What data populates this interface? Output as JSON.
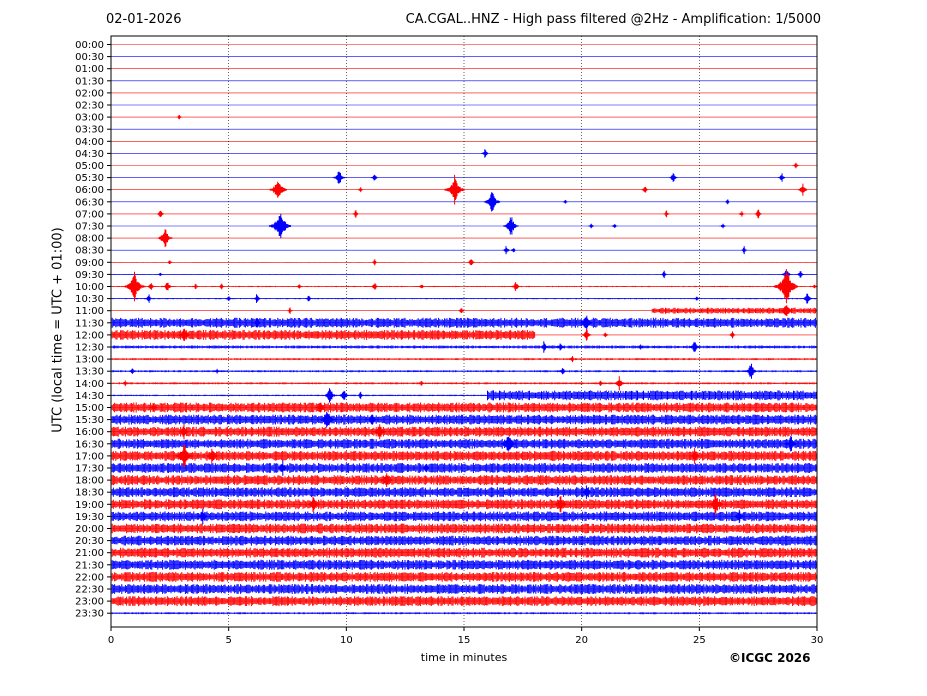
{
  "header": {
    "date": "02-01-2026",
    "title": "CA.CGAL..HNZ - High pass filtered @2Hz - Amplification: 1/5000"
  },
  "footer": {
    "copyright": "©ICGC 2026"
  },
  "colors": {
    "red": "#ff0000",
    "blue": "#0000ff",
    "axis": "#000000"
  },
  "chart_data": {
    "type": "line",
    "title": "CA.CGAL..HNZ - High pass filtered @2Hz - Amplification: 1/5000",
    "xlabel": "time in minutes",
    "ylabel": "UTC (local time = UTC + 01:00)",
    "xlim": [
      0,
      30
    ],
    "xticks": [
      0,
      5,
      10,
      15,
      20,
      25,
      30
    ],
    "grid": "vertical dotted lines at every 5 minutes",
    "row_labels": [
      "00:00",
      "00:30",
      "01:00",
      "01:30",
      "02:00",
      "02:30",
      "03:00",
      "03:30",
      "04:00",
      "04:30",
      "05:00",
      "05:30",
      "06:00",
      "06:30",
      "07:00",
      "07:30",
      "08:00",
      "08:30",
      "09:00",
      "09:30",
      "10:00",
      "10:30",
      "11:00",
      "11:30",
      "12:00",
      "12:30",
      "13:00",
      "13:30",
      "14:00",
      "14:30",
      "15:00",
      "15:30",
      "16:00",
      "16:30",
      "17:00",
      "17:30",
      "18:00",
      "18:30",
      "19:00",
      "19:30",
      "20:00",
      "20:30",
      "21:00",
      "21:30",
      "22:00",
      "22:30",
      "23:00",
      "23:30"
    ],
    "series_colors": [
      "red",
      "blue"
    ],
    "noise_levels": [
      0.04,
      0.04,
      0.04,
      0.04,
      0.04,
      0.04,
      0.04,
      0.04,
      0.04,
      0.04,
      0.05,
      0.05,
      0.05,
      0.05,
      0.06,
      0.06,
      0.06,
      0.06,
      0.07,
      0.08,
      0.12,
      0.12,
      0.3,
      1.0,
      1.0,
      0.3,
      0.2,
      0.2,
      0.2,
      0.7,
      1.0,
      1.0,
      1.0,
      1.0,
      1.0,
      1.0,
      1.0,
      1.0,
      1.0,
      1.0,
      1.0,
      1.0,
      1.0,
      1.0,
      1.0,
      1.0,
      1.0,
      0.2
    ],
    "segments": [
      {
        "row": 11,
        "start": 0,
        "end": 0,
        "level": 0.04
      },
      {
        "row": 23,
        "start": 0,
        "end": 30,
        "level": 1.0
      },
      {
        "row": 24,
        "start": 0,
        "end": 18,
        "level": 1.0
      },
      {
        "row": 22,
        "start": 23,
        "end": 30,
        "level": 0.6
      },
      {
        "row": 29,
        "start": 0,
        "end": 16,
        "level": 0.15
      },
      {
        "row": 29,
        "start": 16,
        "end": 30,
        "level": 1.0
      }
    ],
    "events": [
      {
        "row": 6,
        "t": 2.9,
        "amp": 3
      },
      {
        "row": 9,
        "t": 15.9,
        "amp": 6
      },
      {
        "row": 10,
        "t": 29.1,
        "amp": 5
      },
      {
        "row": 11,
        "t": 9.7,
        "amp": 10
      },
      {
        "row": 11,
        "t": 11.2,
        "amp": 6
      },
      {
        "row": 11,
        "t": 23.9,
        "amp": 7
      },
      {
        "row": 11,
        "t": 28.5,
        "amp": 6
      },
      {
        "row": 12,
        "t": 7.1,
        "amp": 14
      },
      {
        "row": 12,
        "t": 10.6,
        "amp": 4
      },
      {
        "row": 12,
        "t": 14.6,
        "amp": 16
      },
      {
        "row": 12,
        "t": 22.7,
        "amp": 6
      },
      {
        "row": 12,
        "t": 29.4,
        "amp": 8
      },
      {
        "row": 13,
        "t": 16.2,
        "amp": 13
      },
      {
        "row": 13,
        "t": 19.3,
        "amp": 3
      },
      {
        "row": 13,
        "t": 26.2,
        "amp": 3
      },
      {
        "row": 14,
        "t": 2.1,
        "amp": 6
      },
      {
        "row": 14,
        "t": 10.4,
        "amp": 5
      },
      {
        "row": 14,
        "t": 23.6,
        "amp": 5
      },
      {
        "row": 14,
        "t": 26.8,
        "amp": 4
      },
      {
        "row": 14,
        "t": 27.5,
        "amp": 6
      },
      {
        "row": 15,
        "t": 7.2,
        "amp": 18
      },
      {
        "row": 15,
        "t": 17.0,
        "amp": 12
      },
      {
        "row": 15,
        "t": 20.4,
        "amp": 4
      },
      {
        "row": 15,
        "t": 21.4,
        "amp": 4
      },
      {
        "row": 15,
        "t": 26.0,
        "amp": 4
      },
      {
        "row": 16,
        "t": 2.3,
        "amp": 12
      },
      {
        "row": 17,
        "t": 16.8,
        "amp": 6
      },
      {
        "row": 17,
        "t": 17.1,
        "amp": 4
      },
      {
        "row": 17,
        "t": 26.9,
        "amp": 5
      },
      {
        "row": 18,
        "t": 2.5,
        "amp": 4
      },
      {
        "row": 18,
        "t": 11.2,
        "amp": 4
      },
      {
        "row": 18,
        "t": 15.3,
        "amp": 6
      },
      {
        "row": 19,
        "t": 2.1,
        "amp": 3
      },
      {
        "row": 19,
        "t": 23.5,
        "amp": 5
      },
      {
        "row": 19,
        "t": 28.7,
        "amp": 8
      },
      {
        "row": 19,
        "t": 29.3,
        "amp": 6
      },
      {
        "row": 20,
        "t": 1.0,
        "amp": 16
      },
      {
        "row": 20,
        "t": 1.7,
        "amp": 6
      },
      {
        "row": 20,
        "t": 2.4,
        "amp": 7
      },
      {
        "row": 20,
        "t": 3.6,
        "amp": 4
      },
      {
        "row": 20,
        "t": 4.7,
        "amp": 4
      },
      {
        "row": 20,
        "t": 8.0,
        "amp": 4
      },
      {
        "row": 20,
        "t": 11.2,
        "amp": 6
      },
      {
        "row": 20,
        "t": 13.2,
        "amp": 4
      },
      {
        "row": 20,
        "t": 17.2,
        "amp": 7
      },
      {
        "row": 20,
        "t": 28.7,
        "amp": 20
      },
      {
        "row": 20,
        "t": 29.9,
        "amp": 3
      },
      {
        "row": 21,
        "t": 1.6,
        "amp": 6
      },
      {
        "row": 21,
        "t": 5.0,
        "amp": 4
      },
      {
        "row": 21,
        "t": 6.2,
        "amp": 6
      },
      {
        "row": 21,
        "t": 8.4,
        "amp": 5
      },
      {
        "row": 21,
        "t": 24.9,
        "amp": 4
      },
      {
        "row": 21,
        "t": 29.6,
        "amp": 8
      },
      {
        "row": 22,
        "t": 7.6,
        "amp": 4
      },
      {
        "row": 22,
        "t": 14.9,
        "amp": 5
      },
      {
        "row": 22,
        "t": 28.7,
        "amp": 10
      },
      {
        "row": 23,
        "t": 6.2,
        "amp": 7
      },
      {
        "row": 23,
        "t": 20.2,
        "amp": 10
      },
      {
        "row": 24,
        "t": 3.1,
        "amp": 10
      },
      {
        "row": 24,
        "t": 20.2,
        "amp": 8
      },
      {
        "row": 24,
        "t": 21.0,
        "amp": 5
      },
      {
        "row": 24,
        "t": 26.4,
        "amp": 5
      },
      {
        "row": 25,
        "t": 18.4,
        "amp": 7
      },
      {
        "row": 25,
        "t": 19.1,
        "amp": 6
      },
      {
        "row": 25,
        "t": 22.5,
        "amp": 4
      },
      {
        "row": 25,
        "t": 24.8,
        "amp": 8
      },
      {
        "row": 26,
        "t": 19.6,
        "amp": 5
      },
      {
        "row": 27,
        "t": 0.9,
        "amp": 5
      },
      {
        "row": 27,
        "t": 4.5,
        "amp": 3
      },
      {
        "row": 27,
        "t": 19.2,
        "amp": 6
      },
      {
        "row": 27,
        "t": 27.2,
        "amp": 10
      },
      {
        "row": 28,
        "t": 0.6,
        "amp": 4
      },
      {
        "row": 28,
        "t": 13.2,
        "amp": 4
      },
      {
        "row": 28,
        "t": 20.8,
        "amp": 4
      },
      {
        "row": 28,
        "t": 21.6,
        "amp": 8
      },
      {
        "row": 29,
        "t": 9.3,
        "amp": 10
      },
      {
        "row": 29,
        "t": 9.9,
        "amp": 8
      },
      {
        "row": 29,
        "t": 10.6,
        "amp": 5
      },
      {
        "row": 30,
        "t": 1.8,
        "amp": 6
      },
      {
        "row": 30,
        "t": 8.9,
        "amp": 8
      },
      {
        "row": 31,
        "t": 9.2,
        "amp": 12
      },
      {
        "row": 31,
        "t": 11.1,
        "amp": 8
      },
      {
        "row": 32,
        "t": 3.1,
        "amp": 8
      },
      {
        "row": 32,
        "t": 11.4,
        "amp": 10
      },
      {
        "row": 33,
        "t": 16.9,
        "amp": 12
      },
      {
        "row": 33,
        "t": 28.9,
        "amp": 10
      },
      {
        "row": 34,
        "t": 3.1,
        "amp": 14
      },
      {
        "row": 34,
        "t": 4.3,
        "amp": 10
      },
      {
        "row": 34,
        "t": 24.8,
        "amp": 8
      },
      {
        "row": 35,
        "t": 7.3,
        "amp": 8
      },
      {
        "row": 35,
        "t": 13.4,
        "amp": 6
      },
      {
        "row": 36,
        "t": 11.7,
        "amp": 10
      },
      {
        "row": 37,
        "t": 20.2,
        "amp": 8
      },
      {
        "row": 38,
        "t": 8.6,
        "amp": 10
      },
      {
        "row": 38,
        "t": 19.1,
        "amp": 10
      },
      {
        "row": 38,
        "t": 25.7,
        "amp": 12
      },
      {
        "row": 39,
        "t": 3.9,
        "amp": 8
      },
      {
        "row": 39,
        "t": 26.7,
        "amp": 8
      }
    ]
  }
}
